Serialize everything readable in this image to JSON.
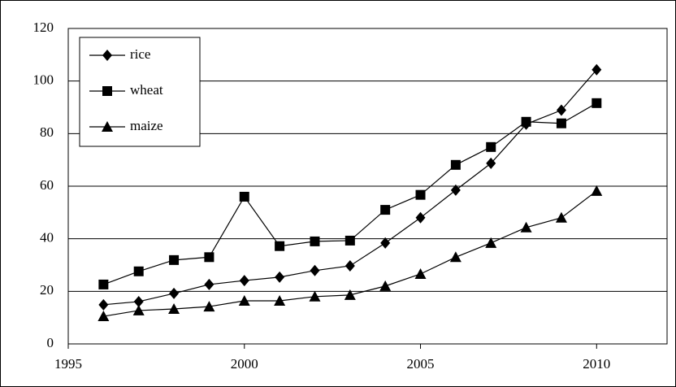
{
  "chart_data": {
    "type": "line",
    "x": [
      1996,
      1997,
      1998,
      1999,
      2000,
      2001,
      2002,
      2003,
      2004,
      2005,
      2006,
      2007,
      2008,
      2009,
      2010
    ],
    "series": [
      {
        "name": "rice",
        "color": "#000000",
        "marker": "diamond",
        "values": [
          14.9,
          16.1,
          19.2,
          22.6,
          24.1,
          25.4,
          27.9,
          29.7,
          38.4,
          48,
          58.5,
          68.7,
          83.6,
          88.9,
          104.3
        ]
      },
      {
        "name": "wheat",
        "color": "#000000",
        "marker": "square",
        "values": [
          22.6,
          27.6,
          31.9,
          33,
          56,
          37.2,
          39,
          39.3,
          51,
          56.7,
          68.1,
          74.9,
          84.5,
          83.9,
          91.6
        ]
      },
      {
        "name": "maize",
        "color": "#000000",
        "marker": "triangle",
        "values": [
          10.5,
          12.7,
          13.3,
          14.2,
          16.4,
          16.4,
          18,
          18.6,
          22,
          26.6,
          33,
          38.4,
          44.3,
          48,
          58.2
        ]
      }
    ],
    "xlim": [
      1995,
      2012
    ],
    "xticks": [
      1995,
      2000,
      2005,
      2010
    ],
    "ylim": [
      0,
      120
    ],
    "yticks": [
      0,
      20,
      40,
      60,
      80,
      100,
      120
    ],
    "grid": true,
    "legend": "top-left"
  }
}
